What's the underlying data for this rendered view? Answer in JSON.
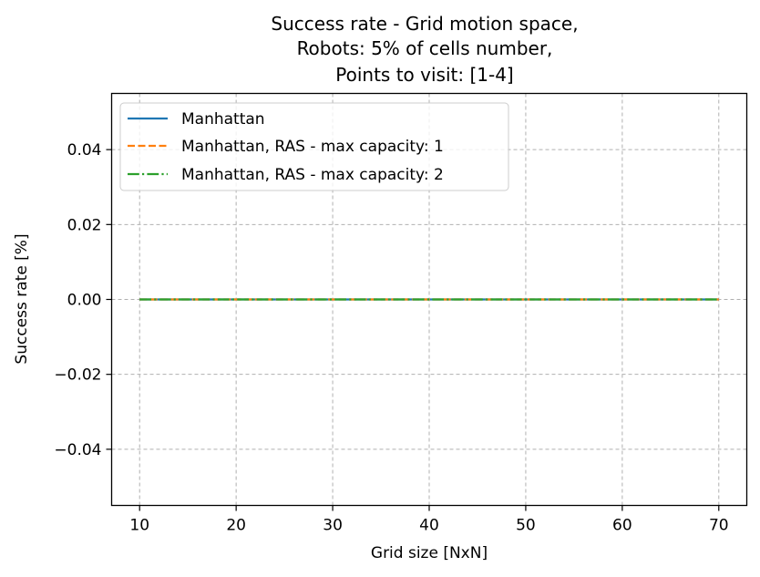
{
  "chart_data": {
    "type": "line",
    "title_lines": [
      "Success rate - Grid motion space,",
      "Robots: 5% of cells number,",
      "Points to visit: [1-4]"
    ],
    "xlabel": "Grid size [NxN]",
    "ylabel": "Success rate [%]",
    "xlim": [
      7.1,
      72.9
    ],
    "ylim": [
      -0.055,
      0.055
    ],
    "xticks": [
      10,
      20,
      30,
      40,
      50,
      60,
      70
    ],
    "xtick_labels": [
      "10",
      "20",
      "30",
      "40",
      "50",
      "60",
      "70"
    ],
    "yticks": [
      -0.04,
      -0.02,
      0.0,
      0.02,
      0.04
    ],
    "ytick_labels": [
      "−0.04",
      "−0.02",
      "0.00",
      "0.02",
      "0.04"
    ],
    "grid": true,
    "legend_position": "upper-left",
    "x": [
      10,
      20,
      30,
      40,
      50,
      60,
      70
    ],
    "series": [
      {
        "name": "Manhattan",
        "values": [
          0,
          0,
          0,
          0,
          0,
          0,
          0
        ],
        "color": "#1f77b4",
        "style": "solid"
      },
      {
        "name": "Manhattan, RAS - max capacity: 1",
        "values": [
          0,
          0,
          0,
          0,
          0,
          0,
          0
        ],
        "color": "#ff7f0e",
        "style": "dashed"
      },
      {
        "name": "Manhattan, RAS - max capacity: 2",
        "values": [
          0,
          0,
          0,
          0,
          0,
          0,
          0
        ],
        "color": "#2ca02c",
        "style": "dashdot"
      }
    ]
  }
}
